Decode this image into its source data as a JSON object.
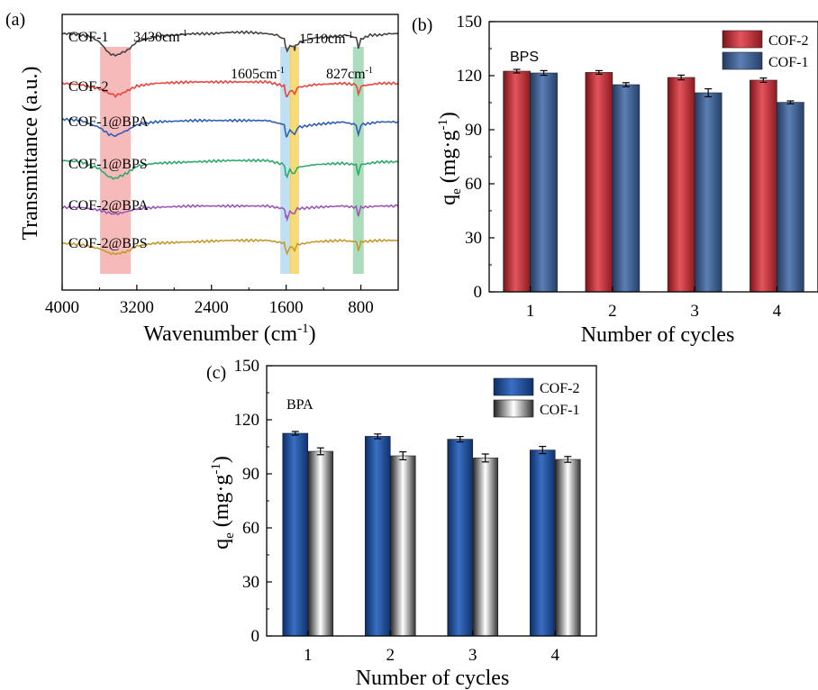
{
  "chart_data": [
    {
      "panel_label": "(a)",
      "type": "line",
      "xlabel": "Wavenumber (cm-1)",
      "ylabel": "Transmittance (a.u.)",
      "xlim": [
        4000,
        400
      ],
      "x_reversed": true,
      "xticks": [
        4000,
        3200,
        2400,
        1600,
        800
      ],
      "y_ticks_shown": false,
      "series": [
        {
          "name": "COF-1",
          "color": "#444444",
          "baseline": 0.93,
          "x": [
            4000,
            3900,
            3800,
            3700,
            3600,
            3500,
            3430,
            3300,
            3200,
            3000,
            2800,
            2600,
            2400,
            2200,
            2000,
            1800,
            1700,
            1620,
            1605,
            1590,
            1560,
            1520,
            1510,
            1500,
            1450,
            1300,
            1100,
            950,
            850,
            827,
            800,
            700,
            600,
            500,
            400
          ],
          "y": [
            0.93,
            0.93,
            0.925,
            0.92,
            0.9,
            0.86,
            0.85,
            0.87,
            0.9,
            0.92,
            0.925,
            0.93,
            0.93,
            0.935,
            0.935,
            0.93,
            0.925,
            0.91,
            0.88,
            0.87,
            0.89,
            0.885,
            0.87,
            0.885,
            0.9,
            0.915,
            0.92,
            0.925,
            0.915,
            0.88,
            0.91,
            0.925,
            0.925,
            0.93,
            0.93
          ]
        },
        {
          "name": "COF-2",
          "color": "#e8453c",
          "baseline": 0.74,
          "x": [
            4000,
            3800,
            3600,
            3500,
            3430,
            3350,
            3200,
            3000,
            2600,
            2200,
            1800,
            1620,
            1605,
            1590,
            1560,
            1510,
            1480,
            1300,
            1000,
            850,
            827,
            800,
            600,
            400
          ],
          "y": [
            0.75,
            0.745,
            0.73,
            0.715,
            0.705,
            0.715,
            0.74,
            0.75,
            0.755,
            0.755,
            0.755,
            0.74,
            0.71,
            0.7,
            0.725,
            0.715,
            0.735,
            0.745,
            0.75,
            0.745,
            0.71,
            0.74,
            0.75,
            0.75
          ]
        },
        {
          "name": "COF-1@BPA",
          "color": "#2f5fb3",
          "baseline": 0.6,
          "x": [
            4000,
            3800,
            3600,
            3500,
            3430,
            3300,
            3200,
            3000,
            2600,
            2200,
            1800,
            1620,
            1605,
            1590,
            1560,
            1510,
            1480,
            1300,
            1000,
            850,
            827,
            800,
            600,
            400
          ],
          "y": [
            0.62,
            0.615,
            0.59,
            0.565,
            0.56,
            0.58,
            0.6,
            0.61,
            0.615,
            0.615,
            0.615,
            0.6,
            0.565,
            0.555,
            0.58,
            0.565,
            0.59,
            0.6,
            0.61,
            0.6,
            0.56,
            0.6,
            0.61,
            0.61
          ]
        },
        {
          "name": "COF-1@BPS",
          "color": "#2eaa6c",
          "baseline": 0.45,
          "x": [
            4000,
            3800,
            3600,
            3500,
            3430,
            3300,
            3200,
            3000,
            2600,
            2200,
            1800,
            1620,
            1605,
            1590,
            1560,
            1510,
            1480,
            1300,
            1000,
            850,
            827,
            800,
            600,
            400
          ],
          "y": [
            0.47,
            0.465,
            0.44,
            0.41,
            0.405,
            0.425,
            0.45,
            0.46,
            0.465,
            0.47,
            0.47,
            0.455,
            0.42,
            0.41,
            0.435,
            0.42,
            0.445,
            0.455,
            0.46,
            0.455,
            0.415,
            0.455,
            0.465,
            0.465
          ]
        },
        {
          "name": "COF-2@BPA",
          "color": "#9b59b6",
          "baseline": 0.3,
          "x": [
            4000,
            3800,
            3600,
            3500,
            3430,
            3300,
            3200,
            3000,
            2600,
            2200,
            1800,
            1620,
            1605,
            1590,
            1560,
            1510,
            1480,
            1300,
            1000,
            850,
            827,
            800,
            600,
            400
          ],
          "y": [
            0.3,
            0.3,
            0.29,
            0.28,
            0.275,
            0.285,
            0.295,
            0.3,
            0.305,
            0.305,
            0.305,
            0.295,
            0.27,
            0.26,
            0.285,
            0.275,
            0.295,
            0.3,
            0.305,
            0.3,
            0.27,
            0.3,
            0.305,
            0.305
          ]
        },
        {
          "name": "COF-2@BPS",
          "color": "#c49a2c",
          "baseline": 0.17,
          "x": [
            4000,
            3800,
            3600,
            3500,
            3430,
            3300,
            3200,
            3000,
            2600,
            2200,
            1800,
            1620,
            1605,
            1590,
            1560,
            1510,
            1480,
            1300,
            1000,
            850,
            827,
            800,
            600,
            400
          ],
          "y": [
            0.17,
            0.165,
            0.15,
            0.135,
            0.13,
            0.14,
            0.16,
            0.17,
            0.175,
            0.18,
            0.18,
            0.17,
            0.145,
            0.135,
            0.16,
            0.145,
            0.165,
            0.175,
            0.18,
            0.175,
            0.145,
            0.175,
            0.18,
            0.18
          ]
        }
      ],
      "highlight_bands": [
        {
          "center": 3430,
          "color": "#f4a3a3",
          "label": "3430cm-1"
        },
        {
          "center": 1605,
          "color": "#a9d4f0",
          "label": "1605cm-1"
        },
        {
          "center": 1510,
          "color": "#f6cf4a",
          "label": "1510cm-1"
        },
        {
          "center": 827,
          "color": "#8fd1a6",
          "label": "827cm-1"
        }
      ]
    },
    {
      "panel_label": "(b)",
      "type": "bar",
      "annotation": "BPS",
      "xlabel": "Number of cycles",
      "ylabel": "qe (mg·g-1)",
      "ylim": [
        0,
        150
      ],
      "yticks": [
        0,
        30,
        60,
        90,
        120,
        150
      ],
      "categories": [
        "1",
        "2",
        "3",
        "4"
      ],
      "legend_position": "top-right",
      "series": [
        {
          "name": "COF-2",
          "color": "#c8303a",
          "values": [
            122.5,
            121.8,
            119.0,
            117.5
          ],
          "errors": [
            1.0,
            1.0,
            1.3,
            1.2
          ]
        },
        {
          "name": "COF-1",
          "color": "#3d5d8e",
          "values": [
            121.5,
            115.0,
            110.5,
            105.2
          ],
          "errors": [
            1.3,
            1.1,
            2.2,
            0.8
          ]
        }
      ]
    },
    {
      "panel_label": "(c)",
      "type": "bar",
      "annotation": "BPA",
      "xlabel": "Number of cycles",
      "ylabel": "qe (mg·g-1)",
      "ylim": [
        0,
        150
      ],
      "yticks": [
        0,
        30,
        60,
        90,
        120,
        150
      ],
      "categories": [
        "1",
        "2",
        "3",
        "4"
      ],
      "legend_position": "top-right",
      "series": [
        {
          "name": "COF-2",
          "color": "#1f4f99",
          "values": [
            112.5,
            110.8,
            109.2,
            103.2
          ],
          "errors": [
            1.0,
            1.3,
            1.5,
            2.0
          ]
        },
        {
          "name": "COF-1",
          "color": "#9a9a9a",
          "values": [
            102.5,
            100.0,
            98.8,
            98.0
          ],
          "errors": [
            1.9,
            2.2,
            2.2,
            1.6
          ]
        }
      ]
    }
  ]
}
